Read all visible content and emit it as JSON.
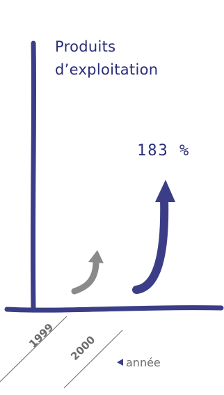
{
  "chart_data": {
    "type": "bar",
    "title_lines": [
      "Produits",
      "d’exploitation"
    ],
    "categories": [
      "1999",
      "2000"
    ],
    "growth_annotation": "183 %",
    "x_unit_label": "année",
    "colors": {
      "axis": "#3b3e86",
      "arrow_1999": "#8a8a8a",
      "arrow_2000": "#3b3e86",
      "text": "#2a2d78",
      "tick_text": "#6b6b6b"
    }
  }
}
